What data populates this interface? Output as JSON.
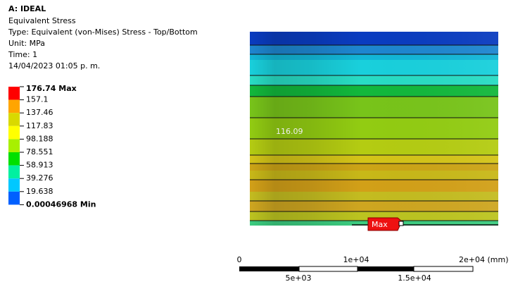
{
  "header": {
    "title": "A: IDEAL",
    "lines": [
      "Equivalent Stress",
      "Type: Equivalent (von-Mises) Stress - Top/Bottom",
      "Unit: MPa",
      "Time: 1",
      "14/04/2023 01:05 p. m."
    ]
  },
  "legend": {
    "labels": [
      "176.74 Max",
      "157.1",
      "137.46",
      "117.83",
      "98.188",
      "78.551",
      "58.913",
      "39.276",
      "19.638",
      "0.00046968 Min"
    ]
  },
  "viewport": {
    "probe_label": "116.09",
    "max_tag": "Max"
  },
  "scale_bar": {
    "top_labels": [
      "0",
      "1e+04",
      "2e+04 (mm)"
    ],
    "bottom_labels": [
      "5e+03",
      "1.5e+04"
    ]
  }
}
